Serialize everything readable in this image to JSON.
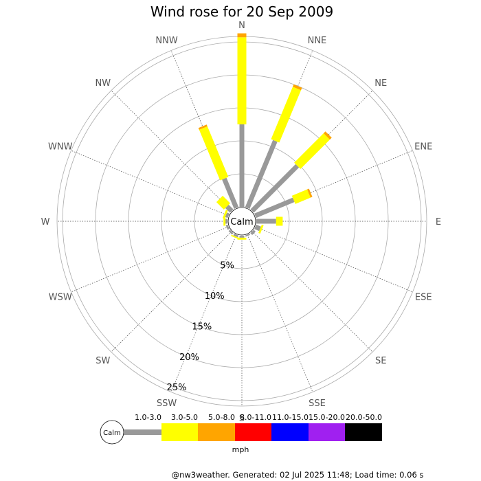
{
  "chart_data": {
    "type": "wind-rose",
    "title": "Wind rose for 20 Sep 2009",
    "directions": [
      "N",
      "NNE",
      "NE",
      "ENE",
      "E",
      "ESE",
      "SE",
      "SSE",
      "S",
      "SSW",
      "SW",
      "WSW",
      "W",
      "WNW",
      "NW",
      "NNW"
    ],
    "ring_labels": [
      "5%",
      "10%",
      "15%",
      "20%",
      "25%"
    ],
    "ring_values": [
      5,
      10,
      15,
      20,
      25
    ],
    "calm_label": "Calm",
    "speed_unit": "mph",
    "speed_bins": [
      {
        "name": "1.0-3.0",
        "color": "#999999"
      },
      {
        "name": "3.0-5.0",
        "color": "#ffff00"
      },
      {
        "name": "5.0-8.0",
        "color": "#ffa500"
      },
      {
        "name": "8.0-11.0",
        "color": "#ff0000"
      },
      {
        "name": "11.0-15.0",
        "color": "#0000ff"
      },
      {
        "name": "15.0-20.0",
        "color": "#a020f0"
      },
      {
        "name": "20.0-50.0",
        "color": "#000000"
      }
    ],
    "series": [
      {
        "direction": "N",
        "values": [
          12.5,
          13.2,
          0.6,
          0,
          0,
          0,
          0
        ]
      },
      {
        "direction": "NNE",
        "values": [
          11.0,
          8.6,
          0.4,
          0,
          0,
          0,
          0
        ]
      },
      {
        "direction": "NE",
        "values": [
          9.7,
          6.3,
          0.4,
          0,
          0,
          0,
          0
        ]
      },
      {
        "direction": "ENE",
        "values": [
          6.3,
          2.5,
          0.3,
          0,
          0,
          0,
          0
        ]
      },
      {
        "direction": "E",
        "values": [
          3.0,
          1.0,
          0,
          0,
          0,
          0,
          0
        ]
      },
      {
        "direction": "ESE",
        "values": [
          0.8,
          0.3,
          0,
          0,
          0,
          0,
          0
        ]
      },
      {
        "direction": "SE",
        "values": [
          0.4,
          0,
          0,
          0,
          0,
          0,
          0
        ]
      },
      {
        "direction": "SSE",
        "values": [
          0.2,
          0,
          0,
          0,
          0,
          0,
          0
        ]
      },
      {
        "direction": "S",
        "values": [
          0.3,
          0.3,
          0,
          0,
          0,
          0,
          0
        ]
      },
      {
        "direction": "SSW",
        "values": [
          0.3,
          0.2,
          0,
          0,
          0,
          0,
          0
        ]
      },
      {
        "direction": "SW",
        "values": [
          0.3,
          0,
          0,
          0,
          0,
          0,
          0
        ]
      },
      {
        "direction": "WSW",
        "values": [
          0.3,
          0,
          0,
          0,
          0,
          0,
          0
        ]
      },
      {
        "direction": "W",
        "values": [
          0.3,
          0.3,
          0,
          0,
          0,
          0,
          0
        ]
      },
      {
        "direction": "WNW",
        "values": [
          0.4,
          0.3,
          0,
          0,
          0,
          0,
          0
        ]
      },
      {
        "direction": "NW",
        "values": [
          1.0,
          1.6,
          0,
          0,
          0,
          0,
          0
        ]
      },
      {
        "direction": "NNW",
        "values": [
          4.8,
          8.3,
          0.3,
          0,
          0,
          0,
          0
        ]
      }
    ]
  },
  "footer": {
    "text": "@nw3weather.  Generated: 02 Jul 2025 11:48; Load time: 0.06 s"
  }
}
